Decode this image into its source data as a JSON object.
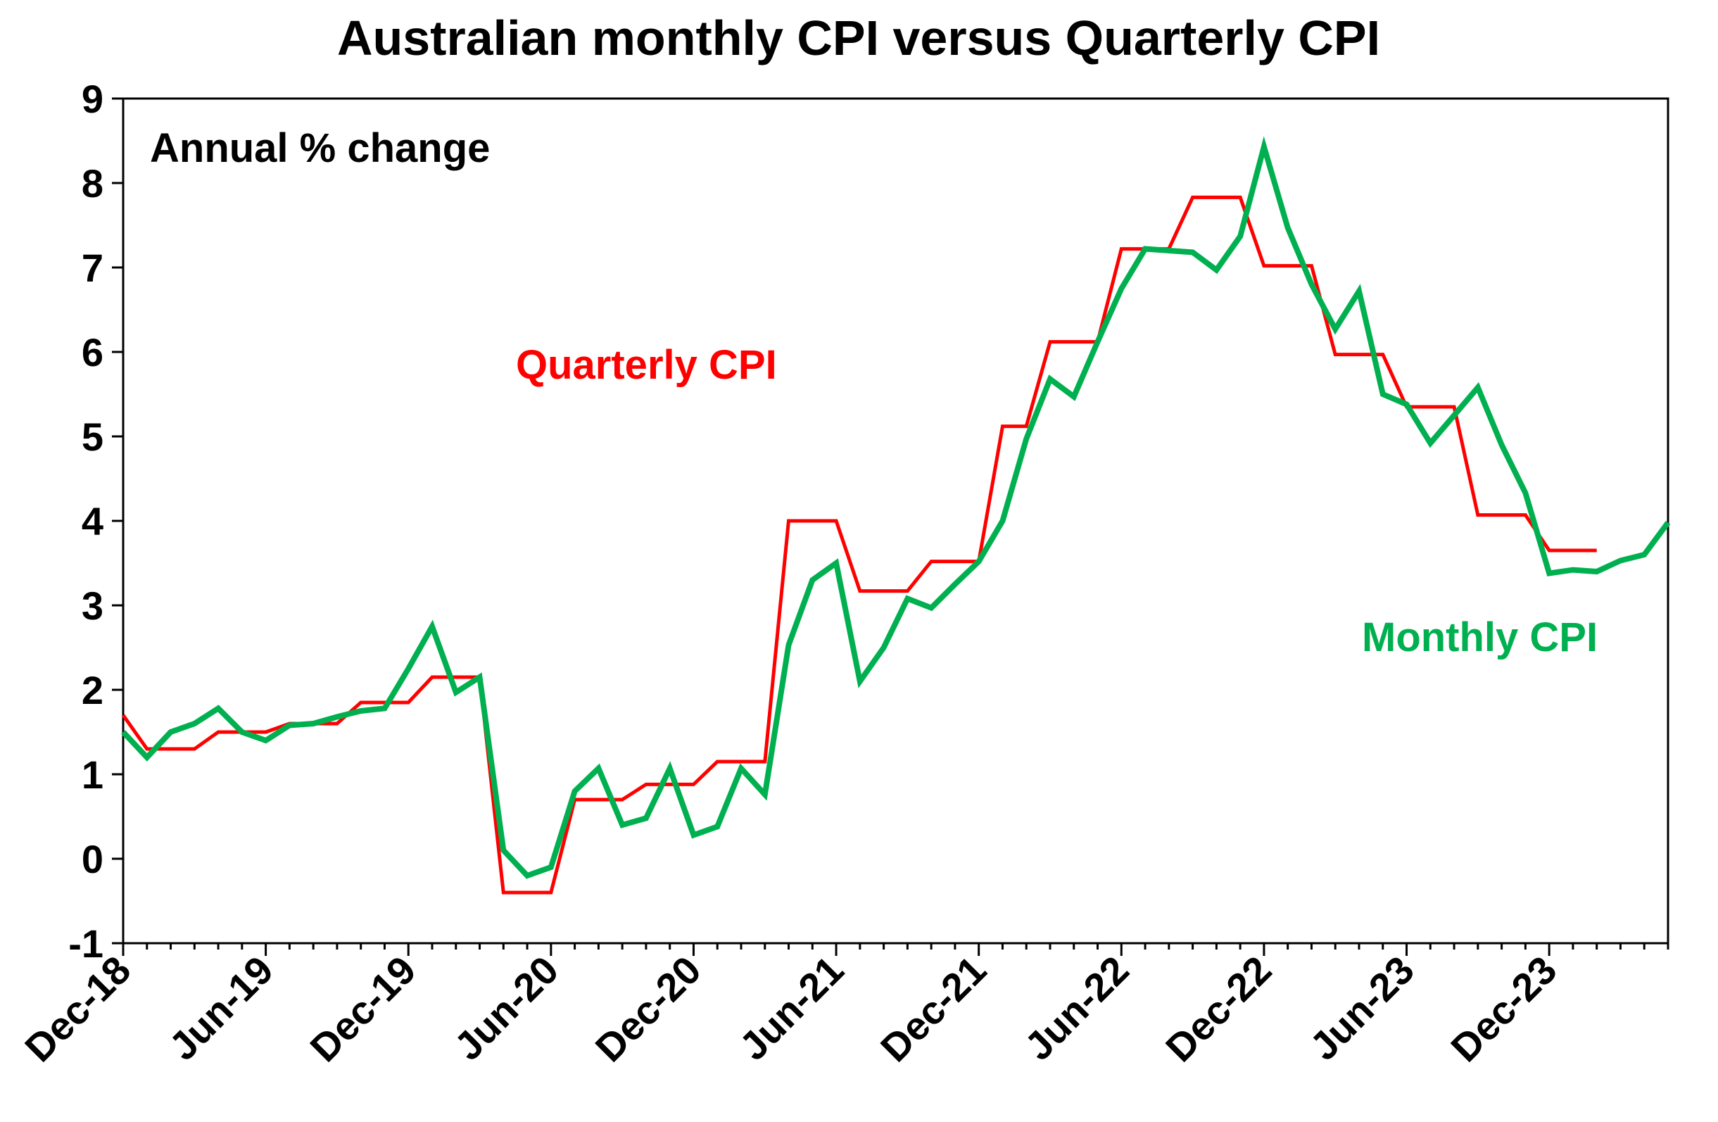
{
  "chart_data": {
    "type": "line",
    "title": "Australian monthly CPI versus Quarterly CPI",
    "annotation": "Annual % change",
    "ylim": [
      -1,
      9
    ],
    "yticks": [
      -1,
      0,
      1,
      2,
      3,
      4,
      5,
      6,
      7,
      8,
      9
    ],
    "xlim": [
      0,
      65
    ],
    "xticks": [
      {
        "label": "Dec-18",
        "pos": 0
      },
      {
        "label": "Jun-19",
        "pos": 6
      },
      {
        "label": "Dec-19",
        "pos": 12
      },
      {
        "label": "Jun-20",
        "pos": 18
      },
      {
        "label": "Dec-20",
        "pos": 24
      },
      {
        "label": "Jun-21",
        "pos": 30
      },
      {
        "label": "Dec-21",
        "pos": 36
      },
      {
        "label": "Jun-22",
        "pos": 42
      },
      {
        "label": "Dec-22",
        "pos": 48
      },
      {
        "label": "Jun-23",
        "pos": 54
      },
      {
        "label": "Dec-23",
        "pos": 60
      }
    ],
    "grid": false,
    "series": [
      {
        "name": "Quarterly CPI",
        "color": "#ff0000",
        "label_position": "upper-left",
        "points": [
          [
            0,
            1.7
          ],
          [
            1,
            1.3
          ],
          [
            2,
            1.3
          ],
          [
            3,
            1.3
          ],
          [
            4,
            1.5
          ],
          [
            5,
            1.5
          ],
          [
            6,
            1.5
          ],
          [
            7,
            1.6
          ],
          [
            8,
            1.6
          ],
          [
            9,
            1.6
          ],
          [
            10,
            1.85
          ],
          [
            11,
            1.85
          ],
          [
            12,
            1.85
          ],
          [
            13,
            2.15
          ],
          [
            14,
            2.15
          ],
          [
            15,
            2.15
          ],
          [
            16,
            -0.4
          ],
          [
            17,
            -0.4
          ],
          [
            18,
            -0.4
          ],
          [
            19,
            0.7
          ],
          [
            20,
            0.7
          ],
          [
            21,
            0.7
          ],
          [
            22,
            0.88
          ],
          [
            23,
            0.88
          ],
          [
            24,
            0.88
          ],
          [
            25,
            1.15
          ],
          [
            26,
            1.15
          ],
          [
            27,
            1.15
          ],
          [
            28,
            4.0
          ],
          [
            29,
            4.0
          ],
          [
            30,
            4.0
          ],
          [
            31,
            3.17
          ],
          [
            32,
            3.17
          ],
          [
            33,
            3.17
          ],
          [
            34,
            3.52
          ],
          [
            35,
            3.52
          ],
          [
            36,
            3.52
          ],
          [
            37,
            5.12
          ],
          [
            38,
            5.12
          ],
          [
            39,
            6.12
          ],
          [
            40,
            6.12
          ],
          [
            41,
            6.12
          ],
          [
            42,
            7.22
          ],
          [
            43,
            7.22
          ],
          [
            44,
            7.22
          ],
          [
            45,
            7.83
          ],
          [
            46,
            7.83
          ],
          [
            47,
            7.83
          ],
          [
            48,
            7.02
          ],
          [
            49,
            7.02
          ],
          [
            50,
            7.02
          ],
          [
            51,
            5.97
          ],
          [
            52,
            5.97
          ],
          [
            53,
            5.97
          ],
          [
            54,
            5.35
          ],
          [
            55,
            5.35
          ],
          [
            56,
            5.35
          ],
          [
            57,
            4.07
          ],
          [
            58,
            4.07
          ],
          [
            59,
            4.07
          ],
          [
            60,
            3.65
          ],
          [
            61,
            3.65
          ],
          [
            62,
            3.65
          ]
        ]
      },
      {
        "name": "Monthly CPI",
        "color": "#00b050",
        "label_position": "lower-right",
        "points": [
          [
            0,
            1.5
          ],
          [
            1,
            1.2
          ],
          [
            2,
            1.5
          ],
          [
            3,
            1.6
          ],
          [
            4,
            1.78
          ],
          [
            5,
            1.5
          ],
          [
            6,
            1.4
          ],
          [
            7,
            1.58
          ],
          [
            8,
            1.6
          ],
          [
            9,
            1.68
          ],
          [
            10,
            1.75
          ],
          [
            11,
            1.78
          ],
          [
            12,
            2.25
          ],
          [
            13,
            2.75
          ],
          [
            14,
            1.97
          ],
          [
            15,
            2.15
          ],
          [
            16,
            0.1
          ],
          [
            17,
            -0.2
          ],
          [
            18,
            -0.1
          ],
          [
            19,
            0.8
          ],
          [
            20,
            1.07
          ],
          [
            21,
            0.4
          ],
          [
            22,
            0.48
          ],
          [
            23,
            1.07
          ],
          [
            24,
            0.28
          ],
          [
            25,
            0.38
          ],
          [
            26,
            1.07
          ],
          [
            27,
            0.76
          ],
          [
            28,
            2.53
          ],
          [
            29,
            3.3
          ],
          [
            30,
            3.5
          ],
          [
            31,
            2.1
          ],
          [
            32,
            2.5
          ],
          [
            33,
            3.08
          ],
          [
            34,
            2.97
          ],
          [
            35,
            3.25
          ],
          [
            36,
            3.52
          ],
          [
            37,
            4.0
          ],
          [
            38,
            4.97
          ],
          [
            39,
            5.68
          ],
          [
            40,
            5.47
          ],
          [
            41,
            6.12
          ],
          [
            42,
            6.75
          ],
          [
            43,
            7.22
          ],
          [
            44,
            7.2
          ],
          [
            45,
            7.18
          ],
          [
            46,
            6.97
          ],
          [
            47,
            7.37
          ],
          [
            48,
            8.43
          ],
          [
            49,
            7.47
          ],
          [
            50,
            6.8
          ],
          [
            51,
            6.27
          ],
          [
            52,
            6.72
          ],
          [
            53,
            5.5
          ],
          [
            54,
            5.38
          ],
          [
            55,
            4.92
          ],
          [
            56,
            5.25
          ],
          [
            57,
            5.58
          ],
          [
            58,
            4.9
          ],
          [
            59,
            4.33
          ],
          [
            60,
            3.38
          ],
          [
            61,
            3.42
          ],
          [
            62,
            3.4
          ],
          [
            63,
            3.53
          ],
          [
            64,
            3.6
          ],
          [
            65,
            3.98
          ]
        ]
      }
    ]
  }
}
